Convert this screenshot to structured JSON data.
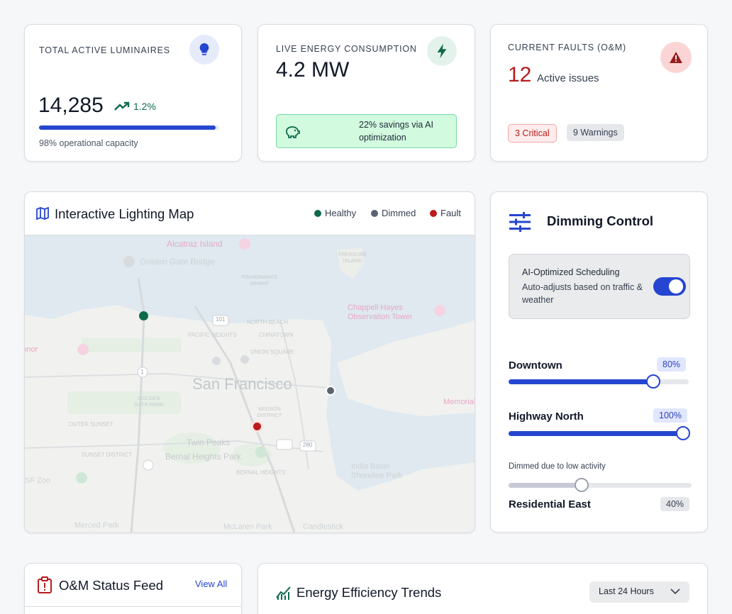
{
  "kpis": {
    "luminaires": {
      "label": "TOTAL ACTIVE LUMINAIRES",
      "value": "14,285",
      "trend": "1.2%",
      "progress": 0.98,
      "caption": "98% operational capacity"
    },
    "energy": {
      "label": "LIVE ENERGY CONSUMPTION",
      "value": "4.2 MW",
      "savings": "22% savings via AI optimization"
    },
    "faults": {
      "label": "CURRENT FAULTS (O&M)",
      "count": "12",
      "count_suffix": "Active issues",
      "critical": "3 Critical",
      "warnings": "9 Warnings"
    }
  },
  "map": {
    "title": "Interactive Lighting Map",
    "legend": [
      {
        "label": "Healthy",
        "color": "#0d6b4a"
      },
      {
        "label": "Dimmed",
        "color": "#5b6270"
      },
      {
        "label": "Fault",
        "color": "#b91c1c"
      }
    ],
    "labels": {
      "city": "San Francisco",
      "alcatraz": "Alcatraz Island",
      "golden_gate": "Golden Gate Bridge",
      "treasure": "TREASURE ISLAND",
      "fishermans": "FISHERMAN'S WHARF",
      "north_beach": "NORTH BEACH",
      "pacific_heights": "PACIFIC HEIGHTS",
      "chinatown": "CHINATOWN",
      "union_square": "UNION SQUARE",
      "chappell": "Chappell Hayes Observation Tower",
      "honor": "Legion of Honor",
      "golden_gate_park": "GOLDEN GATE PARK",
      "outer_sunset": "OUTER SUNSET",
      "sunset_district": "SUNSET DISTRICT",
      "mission": "MISSION DISTRICT",
      "twin_peaks": "Twin Peaks",
      "bernal": "Bernal Heights Park",
      "bernal_heights": "BERNAL HEIGHTS",
      "india_basin": "India Basin Shoreline Park",
      "zoo": "SF Zoo",
      "merced": "Merced Park",
      "mclaren": "McLaren Park",
      "candlestick": "Candlestick",
      "memorial": "Memorial",
      "hw_101": "101",
      "hw_280": "280",
      "hw_1": "1"
    }
  },
  "dimming": {
    "title": "Dimming Control",
    "ai_title": "AI-Optimized Scheduling",
    "ai_desc": "Auto-adjusts based on traffic & weather",
    "ai_enabled": true,
    "zones": [
      {
        "name": "Downtown",
        "value": "80%",
        "level": 0.8
      },
      {
        "name": "Highway North",
        "value": "100%",
        "level": 1.0
      },
      {
        "name": "Residential East",
        "value": "40%",
        "level": 0.4,
        "note": "Dimmed due to low activity"
      }
    ]
  },
  "feed": {
    "title": "O&M Status Feed",
    "view_all": "View All"
  },
  "trends": {
    "title": "Energy Efficiency Trends",
    "range": "Last 24 Hours"
  }
}
